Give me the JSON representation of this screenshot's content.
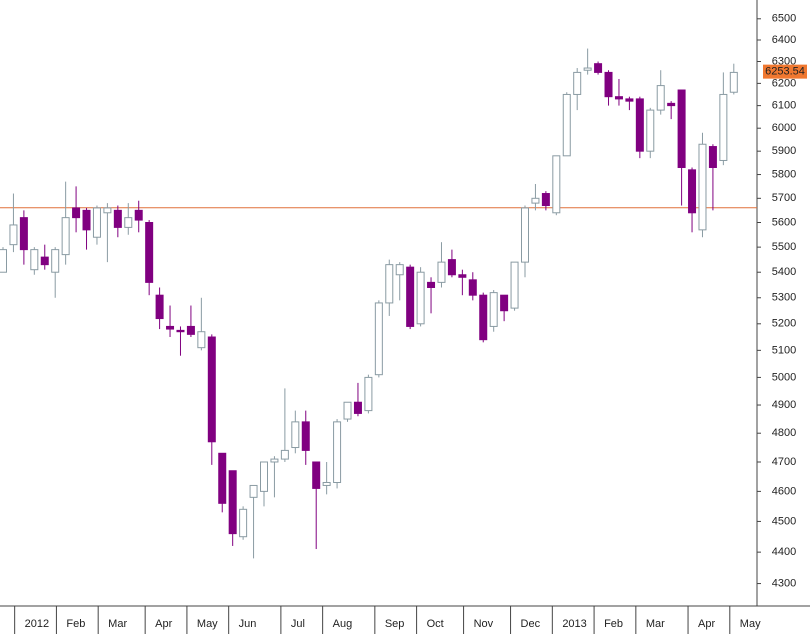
{
  "chart_data": {
    "type": "candlestick",
    "log_scale": true,
    "ylim": [
      4230,
      6590
    ],
    "yticks": [
      4300,
      4400,
      4500,
      4600,
      4700,
      4800,
      4900,
      5000,
      5100,
      5200,
      5300,
      5400,
      5500,
      5600,
      5700,
      5800,
      5900,
      6000,
      6100,
      6200,
      6300,
      6400,
      6500
    ],
    "xticks": [
      {
        "value": 1.5,
        "label": "2012"
      },
      {
        "value": 5.5,
        "label": "Feb"
      },
      {
        "value": 9.5,
        "label": "Mar"
      },
      {
        "value": 14,
        "label": "Apr"
      },
      {
        "value": 18,
        "label": "May"
      },
      {
        "value": 22,
        "label": "Jun"
      },
      {
        "value": 27,
        "label": "Jul"
      },
      {
        "value": 31,
        "label": "Aug"
      },
      {
        "value": 36,
        "label": "Sep"
      },
      {
        "value": 40,
        "label": "Oct"
      },
      {
        "value": 44.5,
        "label": "Nov"
      },
      {
        "value": 49,
        "label": "Dec"
      },
      {
        "value": 53,
        "label": "2013"
      },
      {
        "value": 57,
        "label": "Feb"
      },
      {
        "value": 61,
        "label": "Mar"
      },
      {
        "value": 66,
        "label": "Apr"
      },
      {
        "value": 70,
        "label": "May"
      }
    ],
    "up_color": "#ffffff",
    "up_edge_color": "#8a9ba3",
    "down_color": "#800080",
    "reference_line": 5661,
    "reference_color": "#e0703a",
    "last_price": 6253.54,
    "last_price_color": "#f07830",
    "open": [
      5400,
      5510,
      5620,
      5410,
      5460,
      5400,
      5470,
      5660,
      5650,
      5540,
      5640,
      5650,
      5580,
      5650,
      5600,
      5310,
      5190,
      5175,
      5190,
      5110,
      5150,
      4730,
      4670,
      4450,
      4580,
      4600,
      4700,
      4710,
      4750,
      4840,
      4700,
      4620,
      4630,
      4850,
      4910,
      4880,
      5010,
      5280,
      5390,
      5420,
      5200,
      5360,
      5360,
      5450,
      5390,
      5370,
      5310,
      5190,
      5310,
      5260,
      5440,
      5680,
      5720,
      5640,
      5880,
      6150,
      6260,
      6290,
      6250,
      6140,
      6130,
      6130,
      5900,
      6080,
      6110,
      6170,
      5820,
      5570,
      5920,
      5860,
      6160
    ],
    "high": [
      5500,
      5720,
      5650,
      5500,
      5510,
      5500,
      5770,
      5750,
      5660,
      5670,
      5680,
      5670,
      5680,
      5690,
      5610,
      5340,
      5270,
      5190,
      5270,
      5300,
      5160,
      4730,
      4670,
      4550,
      4620,
      4700,
      4720,
      4960,
      4880,
      4880,
      4700,
      4700,
      4850,
      4910,
      4980,
      5010,
      5290,
      5450,
      5440,
      5430,
      5420,
      5380,
      5520,
      5490,
      5410,
      5400,
      5320,
      5330,
      5310,
      5440,
      5670,
      5760,
      5730,
      5880,
      6160,
      6270,
      6360,
      6300,
      6260,
      6220,
      6140,
      6140,
      6090,
      6260,
      6120,
      6170,
      5830,
      5980,
      5930,
      6250,
      6290
    ],
    "low": [
      5400,
      5480,
      5430,
      5390,
      5410,
      5300,
      5430,
      5560,
      5490,
      5510,
      5440,
      5540,
      5550,
      5560,
      5310,
      5180,
      5150,
      5080,
      5150,
      5100,
      4690,
      4530,
      4420,
      4440,
      4380,
      4550,
      4580,
      4700,
      4730,
      4690,
      4410,
      4590,
      4610,
      4840,
      4860,
      4870,
      5000,
      5230,
      5290,
      5180,
      5190,
      5240,
      5340,
      5380,
      5310,
      5290,
      5130,
      5170,
      5210,
      5250,
      5380,
      5650,
      5650,
      5630,
      5880,
      6080,
      6240,
      6240,
      6100,
      6100,
      6080,
      5870,
      5870,
      6060,
      6040,
      5670,
      5560,
      5540,
      5650,
      5840,
      6150
    ],
    "close": [
      5490,
      5590,
      5490,
      5490,
      5430,
      5490,
      5620,
      5620,
      5570,
      5660,
      5660,
      5580,
      5620,
      5610,
      5360,
      5220,
      5180,
      5170,
      5160,
      5170,
      4770,
      4560,
      4460,
      4540,
      4620,
      4700,
      4710,
      4740,
      4840,
      4740,
      4610,
      4630,
      4840,
      4910,
      4870,
      5000,
      5280,
      5430,
      5430,
      5190,
      5400,
      5340,
      5440,
      5390,
      5380,
      5310,
      5140,
      5320,
      5250,
      5440,
      5660,
      5700,
      5670,
      5880,
      6150,
      6250,
      6270,
      6250,
      6140,
      6130,
      6120,
      5900,
      6080,
      6190,
      6100,
      5830,
      5640,
      5930,
      5830,
      6150,
      6250
    ]
  }
}
